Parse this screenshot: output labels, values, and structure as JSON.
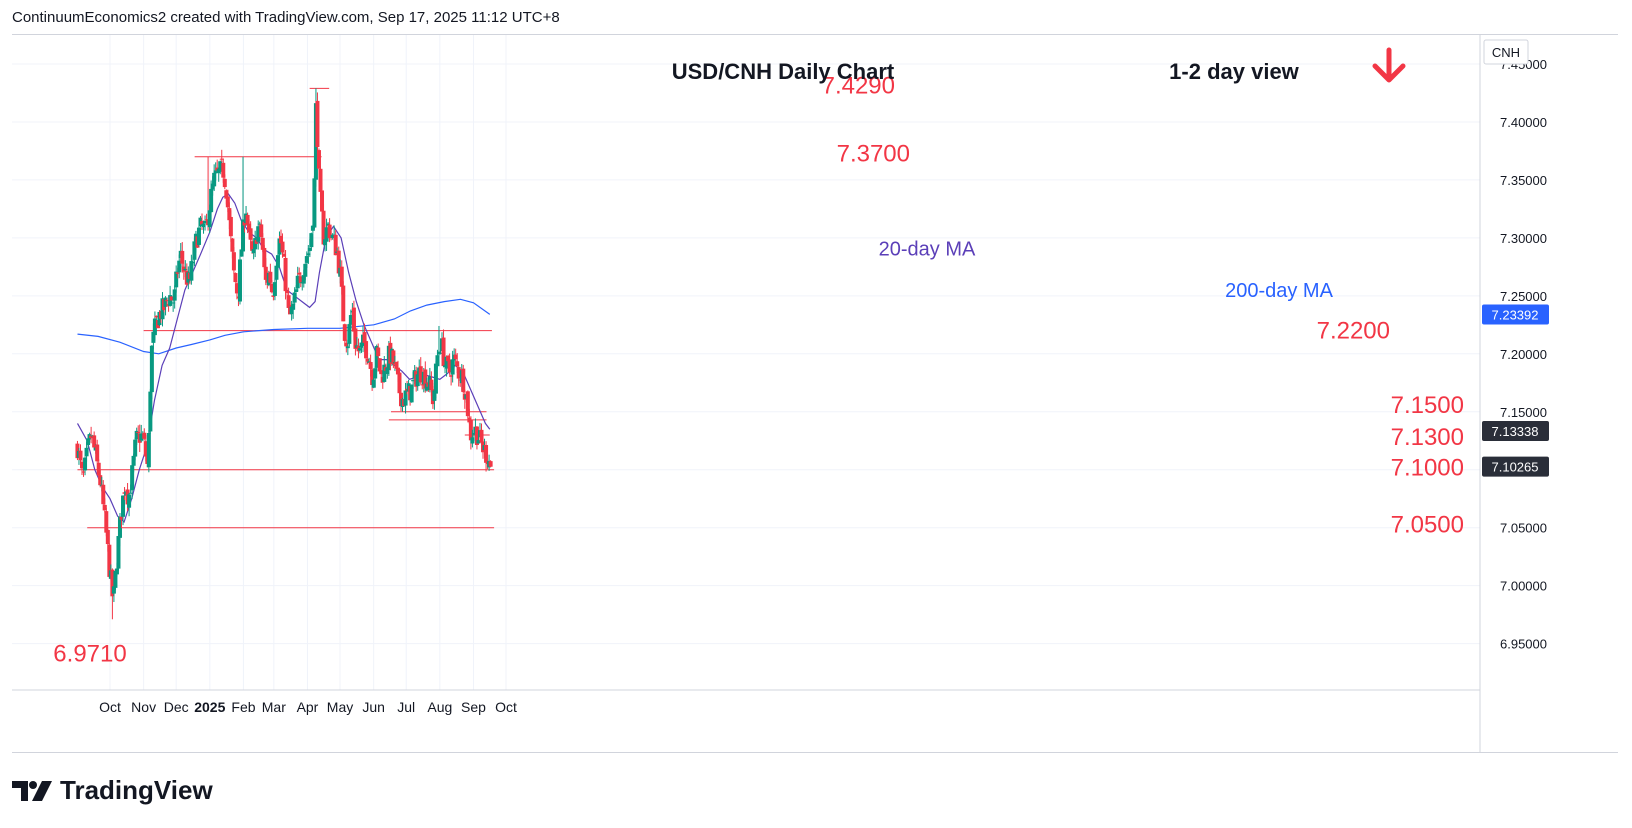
{
  "header": {
    "text": "ContinuumEconomics2 created with TradingView.com, Sep 17, 2025 11:12 UTC+8"
  },
  "brand": {
    "name": "TradingView",
    "icon": "tradingview-logo-icon"
  },
  "colors": {
    "up": "#089981",
    "down": "#f23645",
    "level_line": "#f23645",
    "ma20": "#5b3fb8",
    "ma200": "#2962ff",
    "arrow": "#f23645",
    "price_tag": "#2a2e39",
    "ma_tag": "#2962ff"
  },
  "chart_data": {
    "type": "candlestick",
    "title": "USD/CNH Daily Chart",
    "view_label": "1-2 day view",
    "direction_icon": "down-arrow-icon",
    "symbol": "CNH",
    "y_range": [
      6.91,
      7.475
    ],
    "y_ticks": [
      "7.45000",
      "7.40000",
      "7.35000",
      "7.30000",
      "7.25000",
      "7.20000",
      "7.15000",
      "7.10000",
      "7.05000",
      "7.00000",
      "6.95000"
    ],
    "x_ticks": [
      "Oct",
      "Nov",
      "Dec",
      "2025",
      "Feb",
      "Mar",
      "Apr",
      "May",
      "Jun",
      "Jul",
      "Aug",
      "Sep",
      "Oct"
    ],
    "levels": [
      {
        "label": "7.4290",
        "value": 7.429,
        "from": "2025-04-03",
        "to": "2025-04-21"
      },
      {
        "label": "7.3700",
        "value": 7.37,
        "from": "2024-12-18",
        "to": "2025-04-14"
      },
      {
        "label": "7.2200",
        "value": 7.22,
        "from": "2024-11-01",
        "to": "2025-09-18"
      },
      {
        "label": "7.1500",
        "value": 7.15,
        "from": "2025-06-17",
        "to": "2025-09-13"
      },
      {
        "label": "",
        "value": 7.143,
        "from": "2025-06-15",
        "to": "2025-09-13"
      },
      {
        "label": "7.1300",
        "value": 7.13,
        "from": "2025-08-24",
        "to": "2025-09-16"
      },
      {
        "label": "7.1000",
        "value": 7.1,
        "from": "2024-09-01",
        "to": "2025-09-20"
      },
      {
        "label": "7.0500",
        "value": 7.05,
        "from": "2024-09-10",
        "to": "2025-09-20"
      },
      {
        "label": "6.9710",
        "value": 6.971,
        "from": null,
        "to": null
      }
    ],
    "ma_labels": {
      "ma20": "20-day MA",
      "ma200": "200-day MA"
    },
    "ma20": [
      [
        "2024-09-01",
        7.14
      ],
      [
        "2024-09-10",
        7.125
      ],
      [
        "2024-09-17",
        7.1
      ],
      [
        "2024-09-24",
        7.085
      ],
      [
        "2024-10-01",
        7.075
      ],
      [
        "2024-10-08",
        7.06
      ],
      [
        "2024-10-14",
        7.055
      ],
      [
        "2024-10-21",
        7.075
      ],
      [
        "2024-10-28",
        7.1
      ],
      [
        "2024-11-04",
        7.12
      ],
      [
        "2024-11-11",
        7.16
      ],
      [
        "2024-11-18",
        7.19
      ],
      [
        "2024-11-25",
        7.205
      ],
      [
        "2024-12-02",
        7.23
      ],
      [
        "2024-12-09",
        7.255
      ],
      [
        "2024-12-16",
        7.27
      ],
      [
        "2024-12-23",
        7.285
      ],
      [
        "2025-01-01",
        7.305
      ],
      [
        "2025-01-08",
        7.325
      ],
      [
        "2025-01-13",
        7.335
      ],
      [
        "2025-01-18",
        7.338
      ],
      [
        "2025-01-24",
        7.33
      ],
      [
        "2025-01-30",
        7.315
      ],
      [
        "2025-02-06",
        7.305
      ],
      [
        "2025-02-13",
        7.3
      ],
      [
        "2025-02-20",
        7.29
      ],
      [
        "2025-02-27",
        7.286
      ],
      [
        "2025-03-06",
        7.275
      ],
      [
        "2025-03-13",
        7.255
      ],
      [
        "2025-03-20",
        7.25
      ],
      [
        "2025-03-27",
        7.245
      ],
      [
        "2025-04-03",
        7.24
      ],
      [
        "2025-04-08",
        7.245
      ],
      [
        "2025-04-12",
        7.27
      ],
      [
        "2025-04-18",
        7.3
      ],
      [
        "2025-04-25",
        7.31
      ],
      [
        "2025-05-02",
        7.3
      ],
      [
        "2025-05-09",
        7.27
      ],
      [
        "2025-05-16",
        7.245
      ],
      [
        "2025-05-23",
        7.225
      ],
      [
        "2025-05-30",
        7.21
      ],
      [
        "2025-06-06",
        7.195
      ],
      [
        "2025-06-13",
        7.195
      ],
      [
        "2025-06-20",
        7.19
      ],
      [
        "2025-06-27",
        7.185
      ],
      [
        "2025-07-04",
        7.178
      ],
      [
        "2025-07-11",
        7.18
      ],
      [
        "2025-07-18",
        7.182
      ],
      [
        "2025-07-25",
        7.18
      ],
      [
        "2025-08-01",
        7.178
      ],
      [
        "2025-08-08",
        7.183
      ],
      [
        "2025-08-15",
        7.19
      ],
      [
        "2025-08-22",
        7.185
      ],
      [
        "2025-08-29",
        7.17
      ],
      [
        "2025-09-05",
        7.155
      ],
      [
        "2025-09-12",
        7.14
      ],
      [
        "2025-09-16",
        7.135
      ]
    ],
    "ma200": [
      [
        "2024-09-01",
        7.217
      ],
      [
        "2024-09-20",
        7.215
      ],
      [
        "2024-10-10",
        7.21
      ],
      [
        "2024-11-01",
        7.202
      ],
      [
        "2024-11-15",
        7.2
      ],
      [
        "2024-12-01",
        7.205
      ],
      [
        "2024-12-15",
        7.208
      ],
      [
        "2025-01-01",
        7.212
      ],
      [
        "2025-01-15",
        7.216
      ],
      [
        "2025-02-01",
        7.219
      ],
      [
        "2025-03-01",
        7.221
      ],
      [
        "2025-04-01",
        7.222
      ],
      [
        "2025-05-01",
        7.222
      ],
      [
        "2025-06-01",
        7.225
      ],
      [
        "2025-06-20",
        7.23
      ],
      [
        "2025-07-05",
        7.237
      ],
      [
        "2025-07-20",
        7.242
      ],
      [
        "2025-08-05",
        7.245
      ],
      [
        "2025-08-20",
        7.247
      ],
      [
        "2025-09-01",
        7.244
      ],
      [
        "2025-09-16",
        7.234
      ]
    ],
    "close_path": [
      [
        "2024-09-01",
        7.12
      ],
      [
        "2024-09-06",
        7.09
      ],
      [
        "2024-09-11",
        7.12
      ],
      [
        "2024-09-14",
        7.13
      ],
      [
        "2024-09-18",
        7.11
      ],
      [
        "2024-09-22",
        7.09
      ],
      [
        "2024-09-27",
        7.05
      ],
      [
        "2024-10-01",
        7.01
      ],
      [
        "2024-10-04",
        6.985
      ],
      [
        "2024-10-08",
        7.03
      ],
      [
        "2024-10-11",
        7.06
      ],
      [
        "2024-10-15",
        7.09
      ],
      [
        "2024-10-18",
        7.075
      ],
      [
        "2024-10-22",
        7.1
      ],
      [
        "2024-10-25",
        7.125
      ],
      [
        "2024-10-29",
        7.13
      ],
      [
        "2024-11-01",
        7.125
      ],
      [
        "2024-11-05",
        7.1
      ],
      [
        "2024-11-08",
        7.2
      ],
      [
        "2024-11-12",
        7.225
      ],
      [
        "2024-11-16",
        7.235
      ],
      [
        "2024-11-20",
        7.24
      ],
      [
        "2024-11-25",
        7.25
      ],
      [
        "2024-11-29",
        7.245
      ],
      [
        "2024-12-02",
        7.27
      ],
      [
        "2024-12-05",
        7.285
      ],
      [
        "2024-12-09",
        7.27
      ],
      [
        "2024-12-13",
        7.26
      ],
      [
        "2024-12-17",
        7.285
      ],
      [
        "2024-12-20",
        7.3
      ],
      [
        "2024-12-24",
        7.31
      ],
      [
        "2024-12-28",
        7.305
      ],
      [
        "2025-01-01",
        7.33
      ],
      [
        "2025-01-05",
        7.35
      ],
      [
        "2025-01-09",
        7.355
      ],
      [
        "2025-01-13",
        7.36
      ],
      [
        "2025-01-16",
        7.345
      ],
      [
        "2025-01-20",
        7.3
      ],
      [
        "2025-01-23",
        7.27
      ],
      [
        "2025-01-27",
        7.25
      ],
      [
        "2025-01-30",
        7.29
      ],
      [
        "2025-02-03",
        7.33
      ],
      [
        "2025-02-06",
        7.3
      ],
      [
        "2025-02-10",
        7.28
      ],
      [
        "2025-02-14",
        7.31
      ],
      [
        "2025-02-18",
        7.3
      ],
      [
        "2025-02-21",
        7.26
      ],
      [
        "2025-02-25",
        7.27
      ],
      [
        "2025-02-28",
        7.25
      ],
      [
        "2025-03-04",
        7.29
      ],
      [
        "2025-03-07",
        7.3
      ],
      [
        "2025-03-11",
        7.27
      ],
      [
        "2025-03-15",
        7.23
      ],
      [
        "2025-03-19",
        7.24
      ],
      [
        "2025-03-23",
        7.26
      ],
      [
        "2025-03-27",
        7.27
      ],
      [
        "2025-03-31",
        7.285
      ],
      [
        "2025-04-03",
        7.29
      ],
      [
        "2025-04-07",
        7.33
      ],
      [
        "2025-04-09",
        7.42
      ],
      [
        "2025-04-12",
        7.34
      ],
      [
        "2025-04-16",
        7.3
      ],
      [
        "2025-04-20",
        7.31
      ],
      [
        "2025-04-24",
        7.3
      ],
      [
        "2025-04-28",
        7.29
      ],
      [
        "2025-05-01",
        7.27
      ],
      [
        "2025-05-05",
        7.22
      ],
      [
        "2025-05-08",
        7.21
      ],
      [
        "2025-05-12",
        7.24
      ],
      [
        "2025-05-15",
        7.21
      ],
      [
        "2025-05-19",
        7.2
      ],
      [
        "2025-05-23",
        7.21
      ],
      [
        "2025-05-27",
        7.2
      ],
      [
        "2025-05-31",
        7.18
      ],
      [
        "2025-06-04",
        7.2
      ],
      [
        "2025-06-08",
        7.18
      ],
      [
        "2025-06-12",
        7.19
      ],
      [
        "2025-06-16",
        7.2
      ],
      [
        "2025-06-20",
        7.19
      ],
      [
        "2025-06-24",
        7.17
      ],
      [
        "2025-06-28",
        7.16
      ],
      [
        "2025-07-02",
        7.165
      ],
      [
        "2025-07-06",
        7.17
      ],
      [
        "2025-07-10",
        7.18
      ],
      [
        "2025-07-14",
        7.185
      ],
      [
        "2025-07-18",
        7.18
      ],
      [
        "2025-07-22",
        7.175
      ],
      [
        "2025-07-26",
        7.16
      ],
      [
        "2025-07-30",
        7.2
      ],
      [
        "2025-08-02",
        7.21
      ],
      [
        "2025-08-06",
        7.19
      ],
      [
        "2025-08-10",
        7.185
      ],
      [
        "2025-08-14",
        7.195
      ],
      [
        "2025-08-18",
        7.185
      ],
      [
        "2025-08-22",
        7.18
      ],
      [
        "2025-08-26",
        7.16
      ],
      [
        "2025-08-29",
        7.13
      ],
      [
        "2025-09-02",
        7.135
      ],
      [
        "2025-09-05",
        7.13
      ],
      [
        "2025-09-09",
        7.12
      ],
      [
        "2025-09-12",
        7.115
      ],
      [
        "2025-09-15",
        7.11
      ],
      [
        "2025-09-17",
        7.1026
      ]
    ],
    "extremes": [
      [
        "2024-10-03",
        6.971
      ],
      [
        "2024-12-31",
        7.37
      ],
      [
        "2025-01-31",
        7.37
      ],
      [
        "2025-04-09",
        7.429
      ],
      [
        "2025-07-31",
        7.224
      ],
      [
        "2025-09-16",
        7.099
      ]
    ],
    "price_tags": [
      {
        "label": "7.23392",
        "value": 7.23392,
        "kind": "ma200"
      },
      {
        "label": "7.13338",
        "value": 7.13338,
        "kind": "ma20"
      },
      {
        "label": "7.10265",
        "value": 7.10265,
        "kind": "last"
      }
    ]
  }
}
